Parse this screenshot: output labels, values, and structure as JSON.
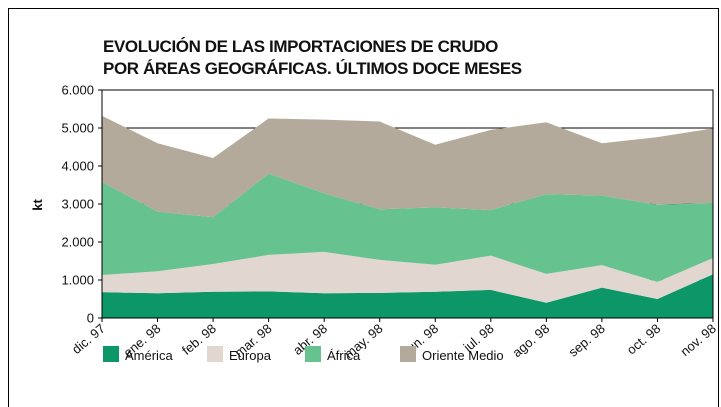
{
  "chart_data": {
    "type": "stacked_area",
    "title": [
      "EVOLUCIÓN DE LAS IMPORTACIONES DE CRUDO",
      "POR ÁREAS GEOGRÁFICAS. ÚLTIMOS DOCE MESES"
    ],
    "y_label": "kt",
    "categories": [
      "dic. 97",
      "ene. 98",
      "feb. 98",
      "mar. 98",
      "abr. 98",
      "may. 98",
      "jun. 98",
      "jul. 98",
      "ago. 98",
      "sep. 98",
      "oct. 98",
      "nov. 98"
    ],
    "series": [
      {
        "name": "América",
        "color": "#0d9668",
        "values": [
          680,
          650,
          690,
          700,
          650,
          660,
          690,
          740,
          400,
          800,
          500,
          1150
        ]
      },
      {
        "name": "Europa",
        "color": "#e2d6d1",
        "values": [
          450,
          580,
          730,
          960,
          1090,
          870,
          710,
          900,
          760,
          590,
          450,
          430
        ]
      },
      {
        "name": "África",
        "color": "#66c28e",
        "values": [
          2450,
          1570,
          1230,
          2140,
          1540,
          1330,
          1510,
          1200,
          2100,
          1830,
          2030,
          1450
        ]
      },
      {
        "name": "Oriente Medio",
        "color": "#b4aa9b",
        "values": [
          1740,
          1800,
          1560,
          1450,
          1940,
          2310,
          1650,
          2110,
          1890,
          1380,
          1780,
          1960
        ]
      }
    ],
    "ylim": [
      0,
      6000
    ],
    "yticks": [
      0,
      {
        "value": 1000,
        "label": "1.000"
      },
      {
        "value": 2000,
        "label": "2.000"
      },
      {
        "value": 3000,
        "label": "3.000"
      },
      {
        "value": 4000,
        "label": "4.000"
      },
      {
        "value": 5000,
        "label": "5.000"
      },
      {
        "value": 6000,
        "label": "6.000"
      }
    ],
    "grid": true,
    "legend": "bottom"
  }
}
